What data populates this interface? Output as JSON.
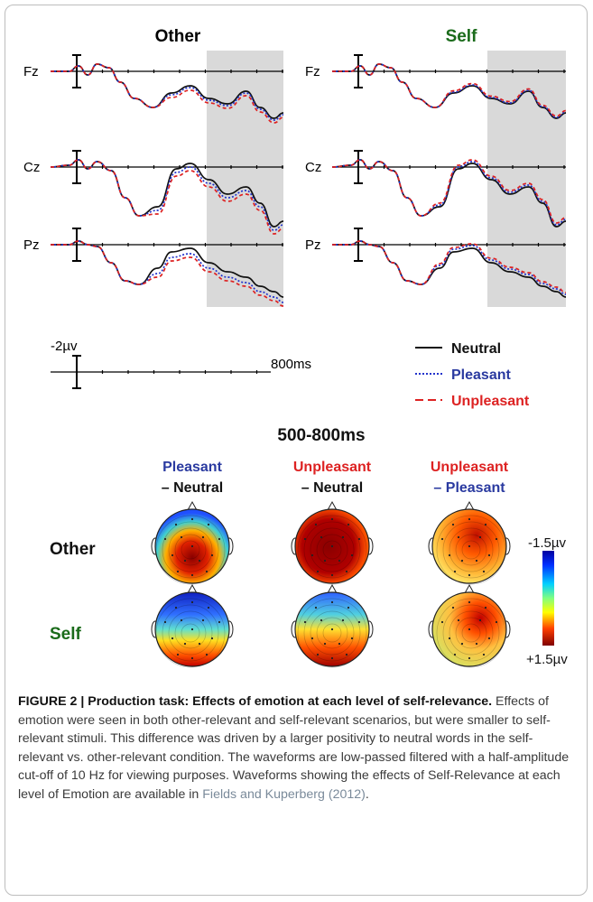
{
  "erp": {
    "columns": [
      {
        "title": "Other",
        "color": "#000000"
      },
      {
        "title": "Self",
        "color": "#1a6b1a"
      }
    ],
    "electrodes": [
      "Fz",
      "Cz",
      "Pz"
    ],
    "scale": {
      "amplitude": "-2µv",
      "time": "800ms"
    },
    "legend": [
      {
        "label": "Neutral",
        "color": "#111111",
        "style": "solid"
      },
      {
        "label": "Pleasant",
        "color": "#2233cc",
        "style": "dotted"
      },
      {
        "label": "Unpleasant",
        "color": "#dd2222",
        "style": "dashed"
      }
    ]
  },
  "topo": {
    "window_title": "500-800ms",
    "contrasts": [
      {
        "line1": "Pleasant",
        "line1_color": "#2a3aa0",
        "line2": "– Neutral",
        "line2_color": "#111111"
      },
      {
        "line1": "Unpleasant",
        "line1_color": "#dd2222",
        "line2": "– Neutral",
        "line2_color": "#111111"
      },
      {
        "line1": "Unpleasant",
        "line1_color": "#dd2222",
        "line2": "– Pleasant",
        "line2_color": "#2a3aa0"
      }
    ],
    "rows": [
      {
        "label": "Other",
        "color": "#111111"
      },
      {
        "label": "Self",
        "color": "#1a6b1a"
      }
    ],
    "colorbar": {
      "top_label": "-1.5µv",
      "bottom_label": "+1.5µv"
    }
  },
  "caption": {
    "figure_label": "FIGURE 2 | Production task: Effects of emotion at each level of self-relevance.",
    "body": " Effects of emotion were seen in both other-relevant and self-relevant scenarios, but were smaller to self-relevant stimuli. This difference was driven by a larger positivity to neutral words in the self-relevant vs. other-relevant condition. The waveforms are low-passed filtered with a half-amplitude cut-off of 10 Hz for viewing purposes. Waveforms showing the effects of Self-Relevance at each level of Emotion are available in ",
    "link": "Fields and Kuperberg (2012)",
    "end": "."
  }
}
